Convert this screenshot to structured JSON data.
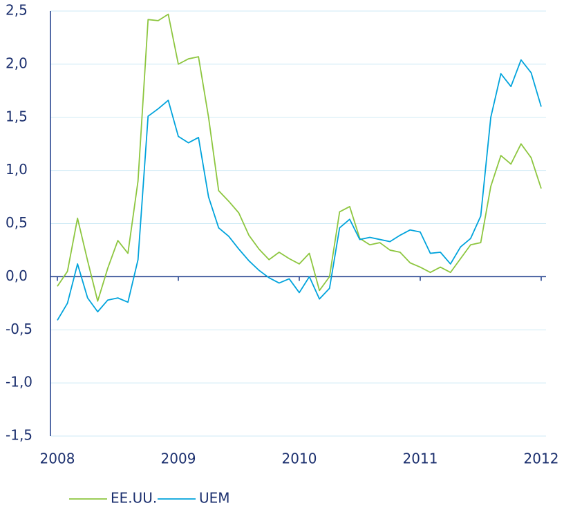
{
  "chart_data": {
    "type": "line",
    "categories": [
      "2008",
      null,
      null,
      null,
      null,
      null,
      null,
      null,
      null,
      null,
      null,
      null,
      "2009",
      null,
      null,
      null,
      null,
      null,
      null,
      null,
      null,
      null,
      null,
      null,
      "2010",
      null,
      null,
      null,
      null,
      null,
      null,
      null,
      null,
      null,
      null,
      null,
      "2011",
      null,
      null,
      null,
      null,
      null,
      null,
      null,
      null,
      null,
      null,
      null,
      "2012"
    ],
    "series": [
      {
        "name": "EE.UU.",
        "color": "#8dc63f",
        "values": [
          -0.09,
          0.05,
          0.55,
          0.15,
          -0.23,
          0.08,
          0.34,
          0.22,
          0.9,
          2.42,
          2.41,
          2.47,
          2.0,
          2.05,
          2.07,
          1.5,
          0.81,
          0.71,
          0.6,
          0.39,
          0.26,
          0.16,
          0.23,
          0.17,
          0.12,
          0.22,
          -0.13,
          0.0,
          0.61,
          0.66,
          0.36,
          0.3,
          0.32,
          0.25,
          0.23,
          0.13,
          0.09,
          0.04,
          0.09,
          0.04,
          0.17,
          0.3,
          0.32,
          0.85,
          1.14,
          1.06,
          1.25,
          1.12,
          0.83
        ]
      },
      {
        "name": "UEM",
        "color": "#00a3dc",
        "values": [
          -0.41,
          -0.25,
          0.12,
          -0.2,
          -0.33,
          -0.22,
          -0.2,
          -0.24,
          0.16,
          1.51,
          1.58,
          1.66,
          1.32,
          1.26,
          1.31,
          0.75,
          0.46,
          0.38,
          0.26,
          0.15,
          0.06,
          -0.01,
          -0.06,
          -0.02,
          -0.15,
          0.0,
          -0.21,
          -0.11,
          0.46,
          0.54,
          0.35,
          0.37,
          0.35,
          0.33,
          0.39,
          0.44,
          0.42,
          0.22,
          0.23,
          0.12,
          0.28,
          0.36,
          0.57,
          1.5,
          1.91,
          1.79,
          2.04,
          1.92,
          1.6
        ]
      }
    ],
    "ylim": [
      -1.5,
      2.5
    ],
    "yticks": [
      {
        "value": -1.5,
        "label": "-1,5"
      },
      {
        "value": -1.0,
        "label": "-1,0"
      },
      {
        "value": -0.5,
        "label": "-0,5"
      },
      {
        "value": 0,
        "label": "0,0"
      },
      {
        "value": 0.5,
        "label": "0,5"
      },
      {
        "value": 1.0,
        "label": "1,0"
      },
      {
        "value": 1.5,
        "label": "1,5"
      },
      {
        "value": 2.0,
        "label": "2,0"
      },
      {
        "value": 2.5,
        "label": "2,5"
      }
    ],
    "grid": true
  }
}
